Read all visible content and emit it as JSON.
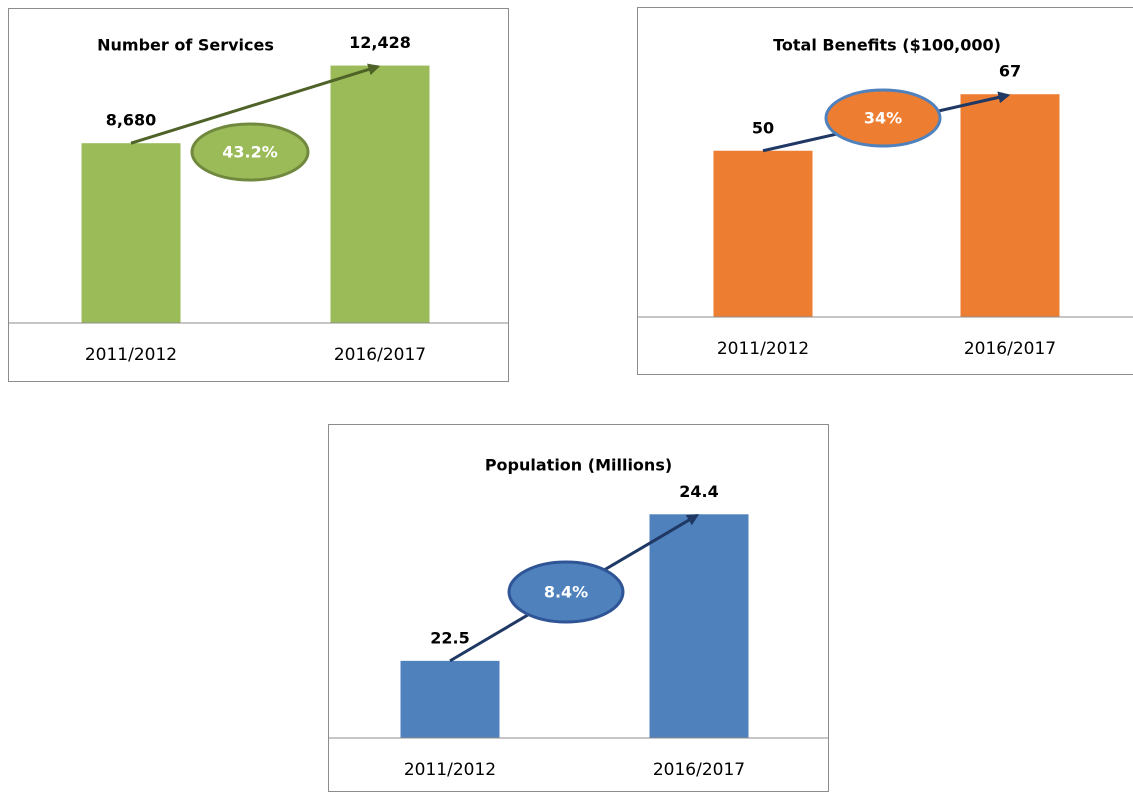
{
  "chart_data": [
    {
      "type": "bar",
      "title": "Number of Services",
      "categories": [
        "2011/2012",
        "2016/2017"
      ],
      "values": [
        8680,
        12428
      ],
      "value_labels": [
        "8,680",
        "12,428"
      ],
      "color": "#9bbb59",
      "ylim": [
        0,
        14000
      ],
      "annotation": "43.2%",
      "annotation_color": "#9bbb59",
      "annotation_border": "#71893f",
      "arrow_color": "#4f6228"
    },
    {
      "type": "bar",
      "title": "Total Benefits ($100,000)",
      "categories": [
        "2011/2012",
        "2016/2017"
      ],
      "values": [
        50,
        67
      ],
      "color": "#ed7d31",
      "ylim": [
        0,
        80
      ],
      "annotation": "34%",
      "annotation_color": "#ed7d31",
      "annotation_border": "#4f81bd",
      "arrow_color": "#1f3864"
    },
    {
      "type": "bar",
      "title": "Population (Millions)",
      "categories": [
        "2011/2012",
        "2016/2017"
      ],
      "values": [
        22.5,
        24.4
      ],
      "color": "#4f81bd",
      "ylim": [
        21.5,
        25
      ],
      "annotation": "8.4%",
      "annotation_color": "#4f81bd",
      "annotation_border": "#2f5597",
      "arrow_color": "#1f3864"
    }
  ]
}
